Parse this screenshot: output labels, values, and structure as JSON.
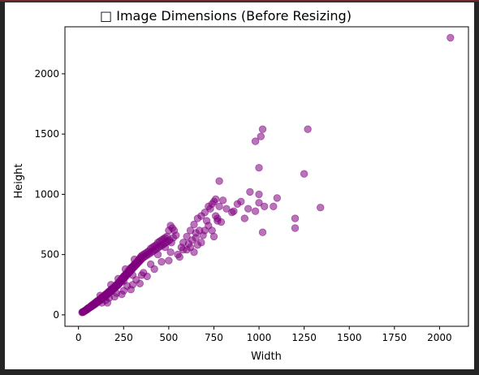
{
  "chart_data": {
    "type": "scatter",
    "title": "□ Image Dimensions (Before Resizing)",
    "xlabel": "Width",
    "ylabel": "Height",
    "xlim": [
      -75,
      2160
    ],
    "ylim": [
      -95,
      2390
    ],
    "xticks": [
      0,
      250,
      500,
      750,
      1000,
      1250,
      1500,
      1750,
      2000
    ],
    "yticks": [
      0,
      500,
      1000,
      1500,
      2000
    ],
    "grid": false,
    "marker_color": "#800080",
    "marker_alpha": 0.55,
    "series": [
      {
        "points": [
          [
            20,
            20
          ],
          [
            22,
            24
          ],
          [
            25,
            22
          ],
          [
            28,
            26
          ],
          [
            30,
            30
          ],
          [
            32,
            28
          ],
          [
            35,
            34
          ],
          [
            38,
            36
          ],
          [
            40,
            40
          ],
          [
            42,
            38
          ],
          [
            45,
            44
          ],
          [
            48,
            50
          ],
          [
            50,
            46
          ],
          [
            52,
            55
          ],
          [
            55,
            52
          ],
          [
            58,
            60
          ],
          [
            60,
            58
          ],
          [
            62,
            64
          ],
          [
            65,
            62
          ],
          [
            68,
            70
          ],
          [
            70,
            75
          ],
          [
            72,
            68
          ],
          [
            75,
            80
          ],
          [
            78,
            76
          ],
          [
            80,
            86
          ],
          [
            82,
            80
          ],
          [
            85,
            90
          ],
          [
            88,
            84
          ],
          [
            90,
            95
          ],
          [
            92,
            100
          ],
          [
            95,
            92
          ],
          [
            98,
            105
          ],
          [
            100,
            110
          ],
          [
            102,
            100
          ],
          [
            105,
            115
          ],
          [
            108,
            108
          ],
          [
            110,
            120
          ],
          [
            112,
            114
          ],
          [
            115,
            125
          ],
          [
            118,
            118
          ],
          [
            120,
            130
          ],
          [
            122,
            124
          ],
          [
            125,
            140
          ],
          [
            128,
            132
          ],
          [
            130,
            145
          ],
          [
            132,
            138
          ],
          [
            135,
            150
          ],
          [
            138,
            144
          ],
          [
            140,
            155
          ],
          [
            142,
            148
          ],
          [
            145,
            160
          ],
          [
            148,
            152
          ],
          [
            150,
            170
          ],
          [
            152,
            162
          ],
          [
            155,
            175
          ],
          [
            158,
            166
          ],
          [
            160,
            180
          ],
          [
            162,
            172
          ],
          [
            165,
            190
          ],
          [
            168,
            180
          ],
          [
            170,
            195
          ],
          [
            172,
            186
          ],
          [
            175,
            200
          ],
          [
            178,
            192
          ],
          [
            180,
            210
          ],
          [
            182,
            200
          ],
          [
            185,
            215
          ],
          [
            188,
            206
          ],
          [
            190,
            220
          ],
          [
            192,
            212
          ],
          [
            195,
            225
          ],
          [
            198,
            218
          ],
          [
            200,
            235
          ],
          [
            202,
            226
          ],
          [
            205,
            240
          ],
          [
            208,
            232
          ],
          [
            210,
            250
          ],
          [
            212,
            240
          ],
          [
            215,
            255
          ],
          [
            218,
            246
          ],
          [
            220,
            265
          ],
          [
            222,
            254
          ],
          [
            225,
            270
          ],
          [
            228,
            262
          ],
          [
            230,
            280
          ],
          [
            232,
            270
          ],
          [
            235,
            290
          ],
          [
            238,
            278
          ],
          [
            240,
            300
          ],
          [
            242,
            286
          ],
          [
            245,
            310
          ],
          [
            248,
            296
          ],
          [
            250,
            320
          ],
          [
            252,
            306
          ],
          [
            255,
            325
          ],
          [
            258,
            312
          ],
          [
            260,
            335
          ],
          [
            262,
            320
          ],
          [
            265,
            340
          ],
          [
            268,
            330
          ],
          [
            270,
            350
          ],
          [
            272,
            338
          ],
          [
            275,
            360
          ],
          [
            278,
            346
          ],
          [
            280,
            370
          ],
          [
            282,
            354
          ],
          [
            285,
            380
          ],
          [
            288,
            362
          ],
          [
            290,
            390
          ],
          [
            292,
            372
          ],
          [
            295,
            395
          ],
          [
            298,
            380
          ],
          [
            300,
            400
          ],
          [
            302,
            388
          ],
          [
            305,
            410
          ],
          [
            308,
            396
          ],
          [
            310,
            420
          ],
          [
            312,
            404
          ],
          [
            315,
            425
          ],
          [
            318,
            412
          ],
          [
            320,
            430
          ],
          [
            322,
            420
          ],
          [
            325,
            440
          ],
          [
            328,
            428
          ],
          [
            330,
            450
          ],
          [
            332,
            436
          ],
          [
            335,
            460
          ],
          [
            338,
            444
          ],
          [
            340,
            470
          ],
          [
            342,
            452
          ],
          [
            345,
            480
          ],
          [
            348,
            460
          ],
          [
            350,
            490
          ],
          [
            355,
            470
          ],
          [
            360,
            500
          ],
          [
            365,
            480
          ],
          [
            370,
            510
          ],
          [
            375,
            490
          ],
          [
            380,
            520
          ],
          [
            385,
            500
          ],
          [
            390,
            530
          ],
          [
            395,
            510
          ],
          [
            400,
            550
          ],
          [
            405,
            520
          ],
          [
            410,
            560
          ],
          [
            415,
            530
          ],
          [
            420,
            570
          ],
          [
            425,
            540
          ],
          [
            430,
            580
          ],
          [
            435,
            550
          ],
          [
            440,
            600
          ],
          [
            445,
            560
          ],
          [
            450,
            610
          ],
          [
            455,
            570
          ],
          [
            460,
            620
          ],
          [
            465,
            580
          ],
          [
            470,
            630
          ],
          [
            475,
            590
          ],
          [
            480,
            640
          ],
          [
            485,
            600
          ],
          [
            490,
            650
          ],
          [
            495,
            610
          ],
          [
            500,
            700
          ],
          [
            505,
            620
          ],
          [
            510,
            740
          ],
          [
            515,
            600
          ],
          [
            520,
            720
          ],
          [
            525,
            640
          ],
          [
            530,
            700
          ],
          [
            540,
            660
          ],
          [
            150,
            120
          ],
          [
            200,
            150
          ],
          [
            250,
            200
          ],
          [
            300,
            250
          ],
          [
            180,
            250
          ],
          [
            220,
            300
          ],
          [
            260,
            380
          ],
          [
            310,
            460
          ],
          [
            160,
            100
          ],
          [
            240,
            170
          ],
          [
            290,
            210
          ],
          [
            340,
            260
          ],
          [
            380,
            320
          ],
          [
            420,
            380
          ],
          [
            460,
            440
          ],
          [
            350,
            330
          ],
          [
            300,
            330
          ],
          [
            250,
            280
          ],
          [
            200,
            230
          ],
          [
            120,
            160
          ],
          [
            130,
            100
          ],
          [
            170,
            140
          ],
          [
            210,
            180
          ],
          [
            270,
            240
          ],
          [
            320,
            290
          ],
          [
            360,
            350
          ],
          [
            400,
            420
          ],
          [
            440,
            500
          ],
          [
            480,
            560
          ],
          [
            510,
            520
          ],
          [
            560,
            480
          ],
          [
            570,
            560
          ],
          [
            580,
            600
          ],
          [
            600,
            650
          ],
          [
            620,
            700
          ],
          [
            640,
            750
          ],
          [
            650,
            640
          ],
          [
            660,
            800
          ],
          [
            670,
            700
          ],
          [
            680,
            820
          ],
          [
            690,
            660
          ],
          [
            700,
            850
          ],
          [
            710,
            780
          ],
          [
            720,
            900
          ],
          [
            730,
            880
          ],
          [
            740,
            920
          ],
          [
            750,
            940
          ],
          [
            760,
            960
          ],
          [
            770,
            800
          ],
          [
            780,
            900
          ],
          [
            600,
            540
          ],
          [
            620,
            560
          ],
          [
            640,
            520
          ],
          [
            660,
            580
          ],
          [
            700,
            700
          ],
          [
            720,
            740
          ],
          [
            750,
            650
          ],
          [
            760,
            820
          ],
          [
            800,
            950
          ],
          [
            820,
            880
          ],
          [
            500,
            450
          ],
          [
            550,
            500
          ],
          [
            580,
            540
          ],
          [
            630,
            620
          ],
          [
            680,
            600
          ],
          [
            740,
            700
          ],
          [
            770,
            780
          ],
          [
            790,
            770
          ],
          [
            610,
            590
          ],
          [
            650,
            680
          ],
          [
            850,
            850
          ],
          [
            880,
            920
          ],
          [
            900,
            940
          ],
          [
            920,
            800
          ],
          [
            950,
            1020
          ],
          [
            1000,
            1000
          ],
          [
            1000,
            930
          ],
          [
            1030,
            900
          ],
          [
            1100,
            970
          ],
          [
            1080,
            900
          ],
          [
            780,
            1110
          ],
          [
            1000,
            1220
          ],
          [
            980,
            1440
          ],
          [
            1010,
            1480
          ],
          [
            1020,
            1540
          ],
          [
            1270,
            1540
          ],
          [
            1250,
            1170
          ],
          [
            1200,
            800
          ],
          [
            1200,
            720
          ],
          [
            1340,
            890
          ],
          [
            1020,
            685
          ],
          [
            980,
            860
          ],
          [
            940,
            880
          ],
          [
            860,
            860
          ],
          [
            2060,
            2300
          ]
        ]
      }
    ]
  }
}
